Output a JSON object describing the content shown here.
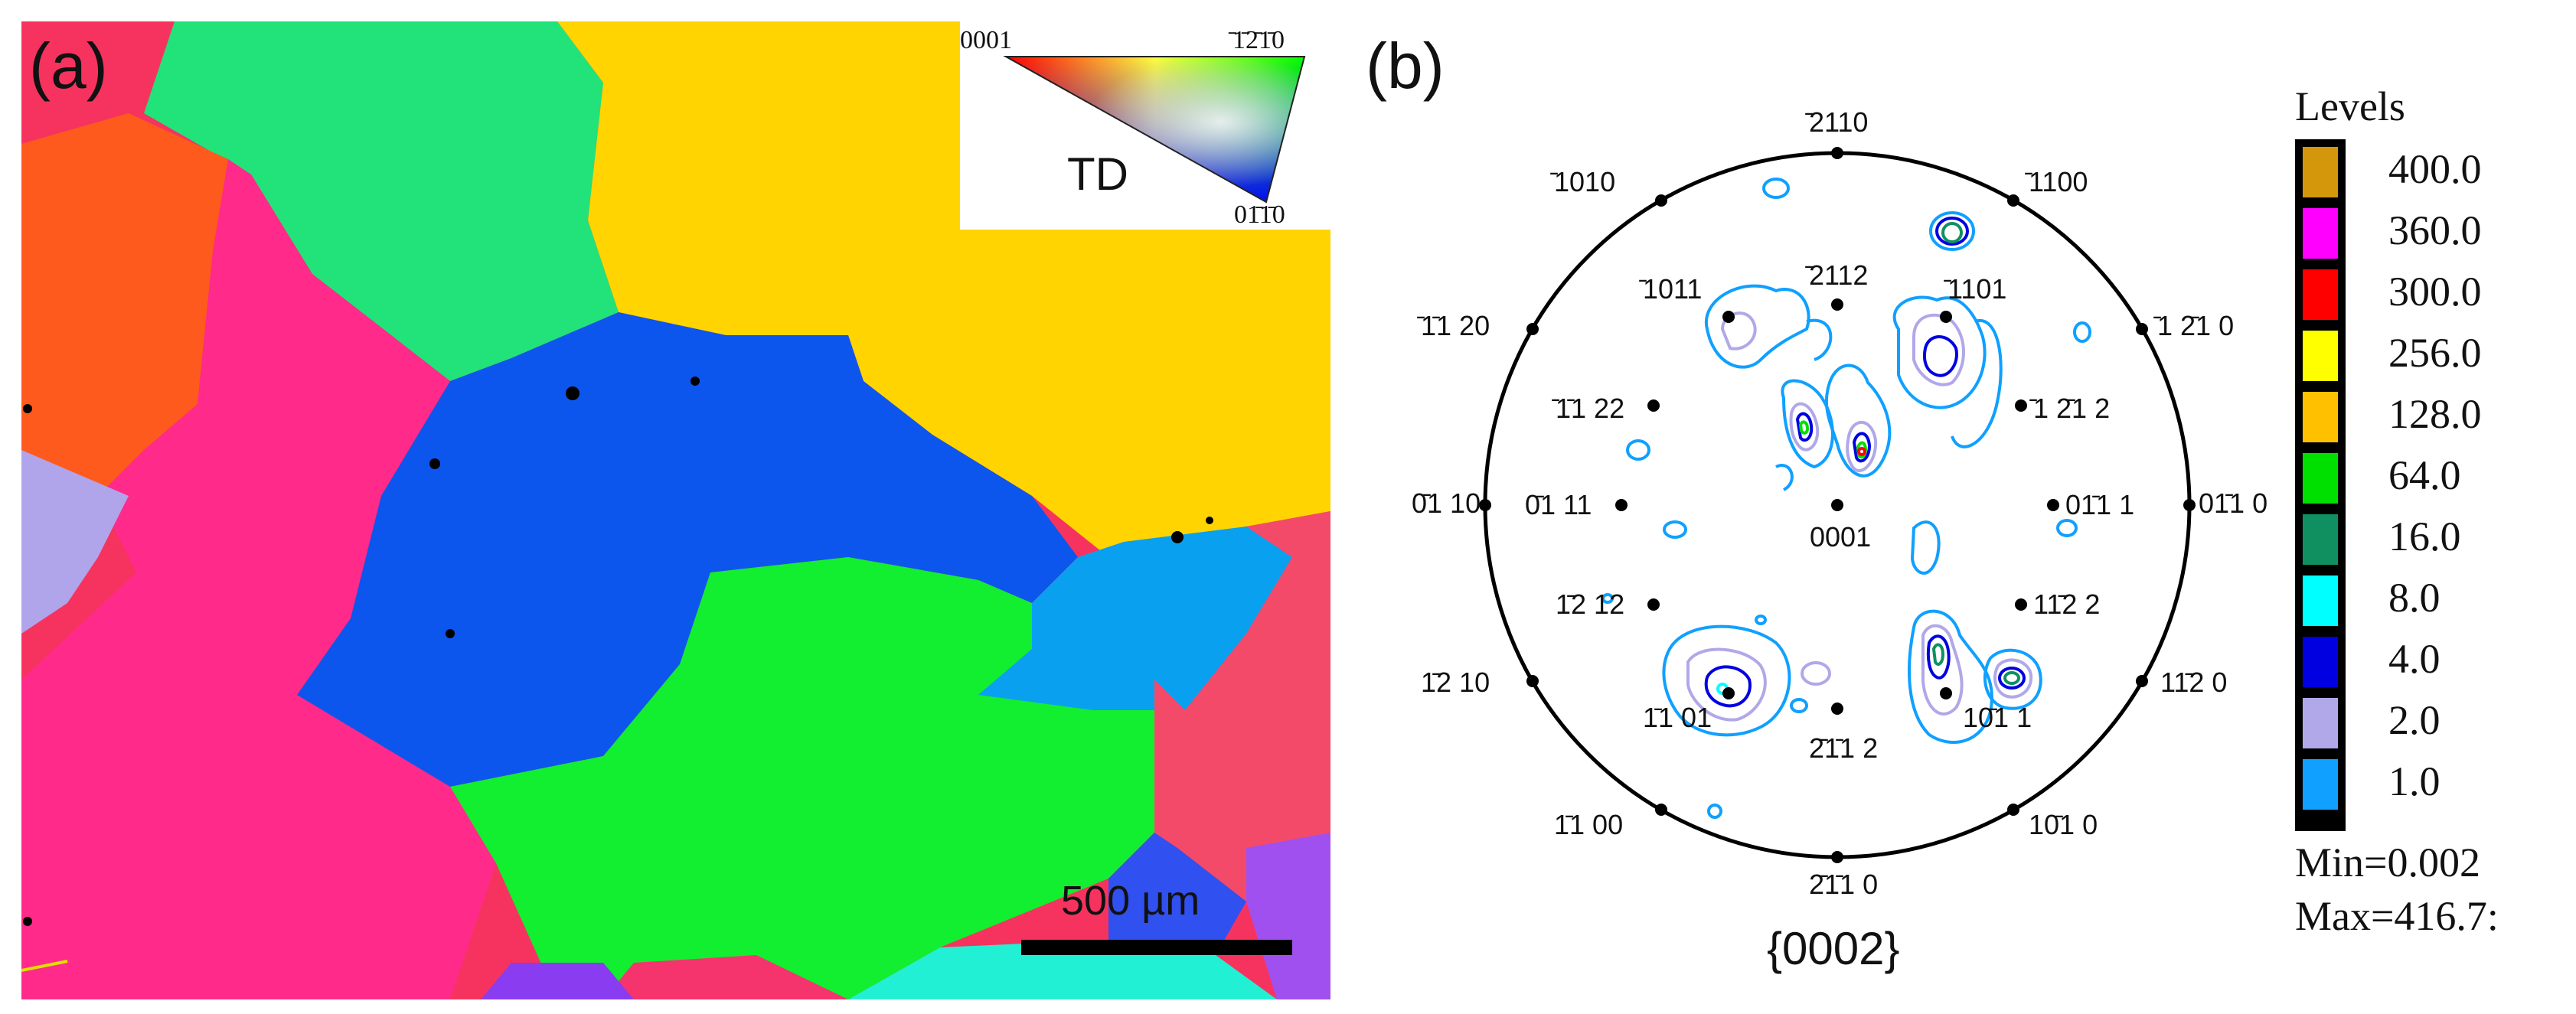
{
  "panel_a": {
    "label": "(a)",
    "ipf_key": {
      "corner_top_left": "0001",
      "corner_top_right": "̄1̄2̄1̄0",
      "corner_bottom": "01̄1̄0",
      "direction": "TD"
    },
    "scalebar": {
      "label": "500 µm"
    }
  },
  "panel_b": {
    "label": "(b)",
    "pole_figure": {
      "caption": "{0002}",
      "poles": [
        {
          "label": "̄2110",
          "name": "pole-2110-top"
        },
        {
          "label": "̄1010",
          "name": "pole-1010-upper-left"
        },
        {
          "label": "̄1100",
          "name": "pole-1100-upper-right"
        },
        {
          "label": "̄1̄1 20",
          "name": "pole-1120-left"
        },
        {
          "label": "̄1 2̄1 0",
          "name": "pole-1210-right"
        },
        {
          "label": "0̄1 10",
          "name": "pole-0110-left-edge"
        },
        {
          "label": "01̄1 0",
          "name": "pole-0110-right-edge"
        },
        {
          "label": "1̄2 10",
          "name": "pole-1210-lower-left"
        },
        {
          "label": "11̄2 0",
          "name": "pole-1120-lower-right"
        },
        {
          "label": "1̄1 00",
          "name": "pole-1100-lower-left"
        },
        {
          "label": "10̄1 0",
          "name": "pole-1010-lower-right"
        },
        {
          "label": "2̄1̄1 0",
          "name": "pole-2110-bottom"
        },
        {
          "label": "̄1011",
          "name": "pole-1011-upper-left"
        },
        {
          "label": "̄2112",
          "name": "pole-2112-upper"
        },
        {
          "label": "̄1101",
          "name": "pole-1101-upper-right"
        },
        {
          "label": "̄1̄1 22",
          "name": "pole-1122-left"
        },
        {
          "label": "̄1 2̄1 2",
          "name": "pole-1212-right"
        },
        {
          "label": "0̄1 11",
          "name": "pole-0111-left"
        },
        {
          "label": "01̄1 1",
          "name": "pole-0111-right"
        },
        {
          "label": "0001",
          "name": "pole-0001-center"
        },
        {
          "label": "1̄2 12",
          "name": "pole-1212-lower-left"
        },
        {
          "label": "11̄2 2",
          "name": "pole-1122-lower-right"
        },
        {
          "label": "1̄1 01",
          "name": "pole-1101-lower-left"
        },
        {
          "label": "10̄1 1",
          "name": "pole-1011-lower-right"
        },
        {
          "label": "2̄1̄1 2",
          "name": "pole-2112-bottom"
        }
      ]
    },
    "legend": {
      "title": "Levels",
      "levels": [
        {
          "value": "400.0",
          "color": "#d4960a"
        },
        {
          "value": "360.0",
          "color": "#ff00ff"
        },
        {
          "value": "300.0",
          "color": "#ff0000"
        },
        {
          "value": "256.0",
          "color": "#ffff00"
        },
        {
          "value": "128.0",
          "color": "#ffc000"
        },
        {
          "value": "64.0",
          "color": "#00e000"
        },
        {
          "value": "16.0",
          "color": "#109060"
        },
        {
          "value": "8.0",
          "color": "#00ffff"
        },
        {
          "value": "4.0",
          "color": "#0000e0"
        },
        {
          "value": "2.0",
          "color": "#b0a8e8"
        },
        {
          "value": "1.0",
          "color": "#10a0ff"
        }
      ],
      "min": "Min=0.002",
      "max": "Max=416.7:"
    }
  }
}
